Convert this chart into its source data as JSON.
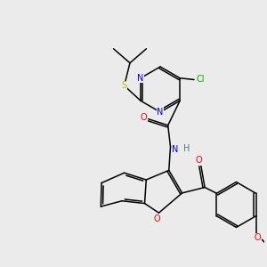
{
  "bg_color": "#ebebeb",
  "atom_colors": {
    "N": "#0000ff",
    "O": "#ff0000",
    "S": "#b8b800",
    "Cl": "#00aa00",
    "C": "#000000",
    "H": "#408080"
  },
  "bond_color": "#000000"
}
